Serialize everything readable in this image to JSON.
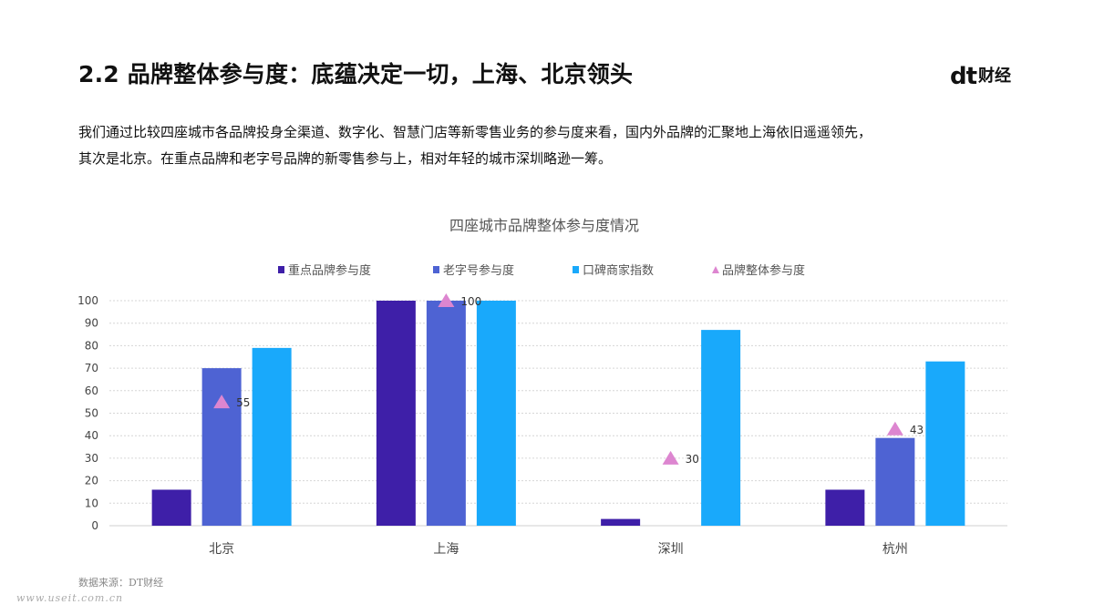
{
  "header": {
    "title": "2.2 品牌整体参与度：底蕴决定一切，上海、北京领头",
    "logo_mark": "dt",
    "logo_text": "财经"
  },
  "description": {
    "line1": "我们通过比较四座城市各品牌投身全渠道、数字化、智慧门店等新零售业务的参与度来看，国内外品牌的汇聚地上海依旧遥遥领先，",
    "line2": "其次是北京。在重点品牌和老字号品牌的新零售参与上，相对年轻的城市深圳略逊一筹。"
  },
  "footer": {
    "source": "数据来源：DT财经",
    "watermark": "www.useit.com.cn"
  },
  "chart_data": {
    "type": "bar",
    "title": "四座城市品牌整体参与度情况",
    "categories": [
      "北京",
      "上海",
      "深圳",
      "杭州"
    ],
    "ylim": [
      0,
      100
    ],
    "yticks": [
      0,
      10,
      20,
      30,
      40,
      50,
      60,
      70,
      80,
      90,
      100
    ],
    "grid": true,
    "legend_position": "top",
    "series": [
      {
        "name": "重点品牌参与度",
        "kind": "bar",
        "color": "#3e1fa8",
        "values": [
          16,
          100,
          3,
          16
        ]
      },
      {
        "name": "老字号参与度",
        "kind": "bar",
        "color": "#4e63d3",
        "values": [
          70,
          100,
          0,
          39
        ]
      },
      {
        "name": "口碑商家指数",
        "kind": "bar",
        "color": "#19a9fb",
        "values": [
          79,
          100,
          87,
          73
        ]
      },
      {
        "name": "品牌整体参与度",
        "kind": "marker-triangle",
        "color": "#dd86d0",
        "values": [
          55,
          100,
          30,
          43
        ]
      }
    ]
  }
}
